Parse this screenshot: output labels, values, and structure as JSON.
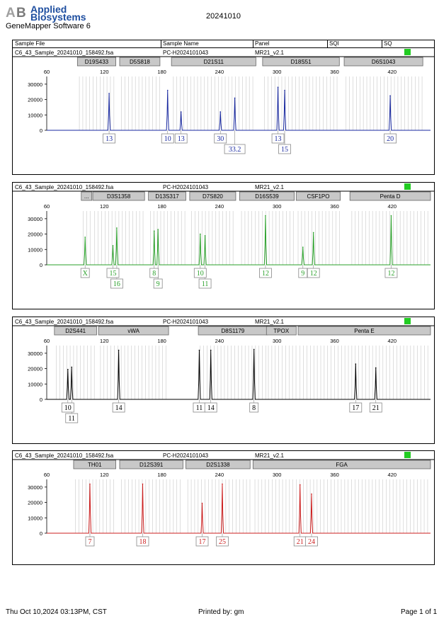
{
  "header": {
    "logo_line1": "Applied",
    "logo_line2": "Biosystems",
    "app_name": "GeneMapper Software 6",
    "run_date": "20241010",
    "columns": [
      "Sample File",
      "Sample Name",
      "Panel",
      "SQI",
      "SQ"
    ]
  },
  "footer": {
    "datetime": "Thu Oct 10,2024 03:13PM, CST",
    "printed_by": "Printed by: gm",
    "page": "Page 1 of 1"
  },
  "colors": {
    "blue": "#1a2aa0",
    "green": "#2aa02a",
    "black": "#000000",
    "red": "#cc1f1f",
    "status": "#22cc22",
    "bin_grey": "#c8c8c8"
  },
  "chart_data": [
    {
      "type": "line",
      "sample_file": "C6_43_Sample_20241010_158492.fsa",
      "sample_name": "PC-H2024101043",
      "panel": "MR21_v2.1",
      "dye": "blue",
      "xlim": [
        60,
        460
      ],
      "x_ticks": [
        60,
        120,
        180,
        240,
        300,
        360,
        420
      ],
      "ylim": [
        0,
        35000
      ],
      "y_ticks": [
        0,
        10000,
        20000,
        30000
      ],
      "markers": [
        {
          "name": "D19S433",
          "range": [
            92,
            132
          ]
        },
        {
          "name": "D5S818",
          "range": [
            136,
            178
          ]
        },
        {
          "name": "D21S11",
          "range": [
            190,
            278
          ]
        },
        {
          "name": "D18S51",
          "range": [
            285,
            365
          ]
        },
        {
          "name": "D6S1043",
          "range": [
            370,
            452
          ]
        }
      ],
      "peaks": [
        {
          "x": 125,
          "y": 24000
        },
        {
          "x": 186,
          "y": 26000
        },
        {
          "x": 200,
          "y": 12000
        },
        {
          "x": 241,
          "y": 12000
        },
        {
          "x": 256,
          "y": 21000
        },
        {
          "x": 301,
          "y": 28000
        },
        {
          "x": 308,
          "y": 26000
        },
        {
          "x": 418,
          "y": 22500
        }
      ],
      "alleles_row1": [
        {
          "x": 125,
          "label": "13"
        },
        {
          "x": 186,
          "label": "10"
        },
        {
          "x": 200,
          "label": "13"
        },
        {
          "x": 241,
          "label": "30"
        },
        {
          "x": 301,
          "label": "13"
        },
        {
          "x": 418,
          "label": "20"
        }
      ],
      "alleles_row2": [
        {
          "x": 256,
          "label": "33.2"
        },
        {
          "x": 308,
          "label": "15"
        }
      ]
    },
    {
      "type": "line",
      "sample_file": "C6_43_Sample_20241010_158492.fsa",
      "sample_name": "PC-H2024101043",
      "panel": "MR21_v2.1",
      "dye": "green",
      "xlim": [
        60,
        460
      ],
      "x_ticks": [
        60,
        120,
        180,
        240,
        300,
        360,
        420
      ],
      "ylim": [
        0,
        35000
      ],
      "y_ticks": [
        0,
        10000,
        20000,
        30000
      ],
      "markers": [
        {
          "name": "...",
          "range": [
            96,
            107
          ]
        },
        {
          "name": "D3S1358",
          "range": [
            108,
            162
          ]
        },
        {
          "name": "D13S317",
          "range": [
            166,
            205
          ]
        },
        {
          "name": "D7S820",
          "range": [
            209,
            257
          ]
        },
        {
          "name": "D16S539",
          "range": [
            261,
            318
          ]
        },
        {
          "name": "CSF1PO",
          "range": [
            320,
            366
          ]
        },
        {
          "name": "Penta D",
          "range": [
            376,
            460
          ]
        }
      ],
      "peaks": [
        {
          "x": 100,
          "y": 18000
        },
        {
          "x": 129,
          "y": 12500
        },
        {
          "x": 133,
          "y": 24000
        },
        {
          "x": 172,
          "y": 22000
        },
        {
          "x": 176,
          "y": 23000
        },
        {
          "x": 220,
          "y": 20000
        },
        {
          "x": 225,
          "y": 19000
        },
        {
          "x": 288,
          "y": 32000
        },
        {
          "x": 327,
          "y": 11500
        },
        {
          "x": 338,
          "y": 21000
        },
        {
          "x": 419,
          "y": 32000
        }
      ],
      "alleles_row1": [
        {
          "x": 100,
          "label": "X"
        },
        {
          "x": 129,
          "label": "15"
        },
        {
          "x": 172,
          "label": "8"
        },
        {
          "x": 220,
          "label": "10"
        },
        {
          "x": 288,
          "label": "12"
        },
        {
          "x": 327,
          "label": "9"
        },
        {
          "x": 338,
          "label": "12"
        },
        {
          "x": 419,
          "label": "12"
        }
      ],
      "alleles_row2": [
        {
          "x": 133,
          "label": "16"
        },
        {
          "x": 176,
          "label": "9"
        },
        {
          "x": 225,
          "label": "11"
        }
      ]
    },
    {
      "type": "line",
      "sample_file": "C6_43_Sample_20241010_158492.fsa",
      "sample_name": "PC-H2024101043",
      "panel": "MR21_v2.1",
      "dye": "black",
      "xlim": [
        60,
        460
      ],
      "x_ticks": [
        60,
        120,
        180,
        240,
        300,
        360,
        420
      ],
      "ylim": [
        0,
        35000
      ],
      "y_ticks": [
        0,
        10000,
        20000,
        30000
      ],
      "markers": [
        {
          "name": "D2S441",
          "range": [
            68,
            112
          ]
        },
        {
          "name": "vWA",
          "range": [
            114,
            187
          ]
        },
        {
          "name": "D8S1179",
          "range": [
            218,
            290
          ]
        },
        {
          "name": "TPOX",
          "range": [
            289,
            320
          ]
        },
        {
          "name": "Penta E",
          "range": [
            322,
            460
          ]
        }
      ],
      "peaks": [
        {
          "x": 82,
          "y": 19500
        },
        {
          "x": 86,
          "y": 21000
        },
        {
          "x": 135,
          "y": 32000
        },
        {
          "x": 219,
          "y": 32000
        },
        {
          "x": 231,
          "y": 32000
        },
        {
          "x": 276,
          "y": 32500
        },
        {
          "x": 382,
          "y": 23000
        },
        {
          "x": 403,
          "y": 20500
        }
      ],
      "alleles_row1": [
        {
          "x": 82,
          "label": "10"
        },
        {
          "x": 135,
          "label": "14"
        },
        {
          "x": 219,
          "label": "11"
        },
        {
          "x": 231,
          "label": "14"
        },
        {
          "x": 276,
          "label": "8"
        },
        {
          "x": 382,
          "label": "17"
        },
        {
          "x": 403,
          "label": "21"
        }
      ],
      "alleles_row2": [
        {
          "x": 86,
          "label": "11"
        }
      ]
    },
    {
      "type": "line",
      "sample_file": "C6_43_Sample_20241010_158492.fsa",
      "sample_name": "PC-H2024101043",
      "panel": "MR21_v2.1",
      "dye": "red",
      "xlim": [
        60,
        460
      ],
      "x_ticks": [
        60,
        120,
        180,
        240,
        300,
        360,
        420
      ],
      "ylim": [
        0,
        35000
      ],
      "y_ticks": [
        0,
        10000,
        20000,
        30000
      ],
      "markers": [
        {
          "name": "TH01",
          "range": [
            88,
            132
          ]
        },
        {
          "name": "D12S391",
          "range": [
            136,
            202
          ]
        },
        {
          "name": "D2S1338",
          "range": [
            205,
            272
          ]
        },
        {
          "name": "FGA",
          "range": [
            275,
            460
          ]
        }
      ],
      "peaks": [
        {
          "x": 105,
          "y": 32000
        },
        {
          "x": 160,
          "y": 32000
        },
        {
          "x": 222,
          "y": 19500
        },
        {
          "x": 243,
          "y": 32000
        },
        {
          "x": 324,
          "y": 31500
        },
        {
          "x": 336,
          "y": 25500
        }
      ],
      "alleles_row1": [
        {
          "x": 105,
          "label": "7"
        },
        {
          "x": 160,
          "label": "18"
        },
        {
          "x": 222,
          "label": "17"
        },
        {
          "x": 243,
          "label": "25"
        },
        {
          "x": 324,
          "label": "21"
        },
        {
          "x": 336,
          "label": "24"
        }
      ],
      "alleles_row2": []
    }
  ]
}
